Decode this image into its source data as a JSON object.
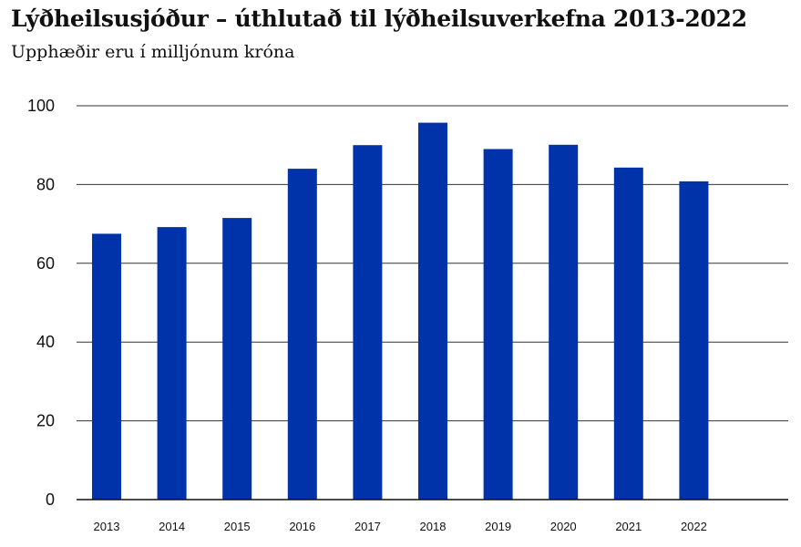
{
  "header": {
    "title": "Lýðheilsusjóður – úthlutað til lýðheilsuverkefna 2013-2022",
    "subtitle": "Upphæðir eru í milljónum króna"
  },
  "chart_data": {
    "type": "bar",
    "title": "Lýðheilsusjóður – úthlutað til lýðheilsuverkefna 2013-2022",
    "subtitle": "Upphæðir eru í milljónum króna",
    "categories": [
      "2013",
      "2014",
      "2015",
      "2016",
      "2017",
      "2018",
      "2019",
      "2020",
      "2021",
      "2022"
    ],
    "values": [
      67.5,
      69.2,
      71.5,
      84.0,
      90.0,
      95.7,
      89.0,
      90.1,
      84.3,
      80.8
    ],
    "ylim": [
      0,
      100
    ],
    "yticks": [
      0,
      20,
      40,
      60,
      80,
      100
    ],
    "grid": true,
    "legend": "none",
    "colors": {
      "bar": "#0033aa",
      "grid": "#333333",
      "axis": "#111111"
    }
  }
}
